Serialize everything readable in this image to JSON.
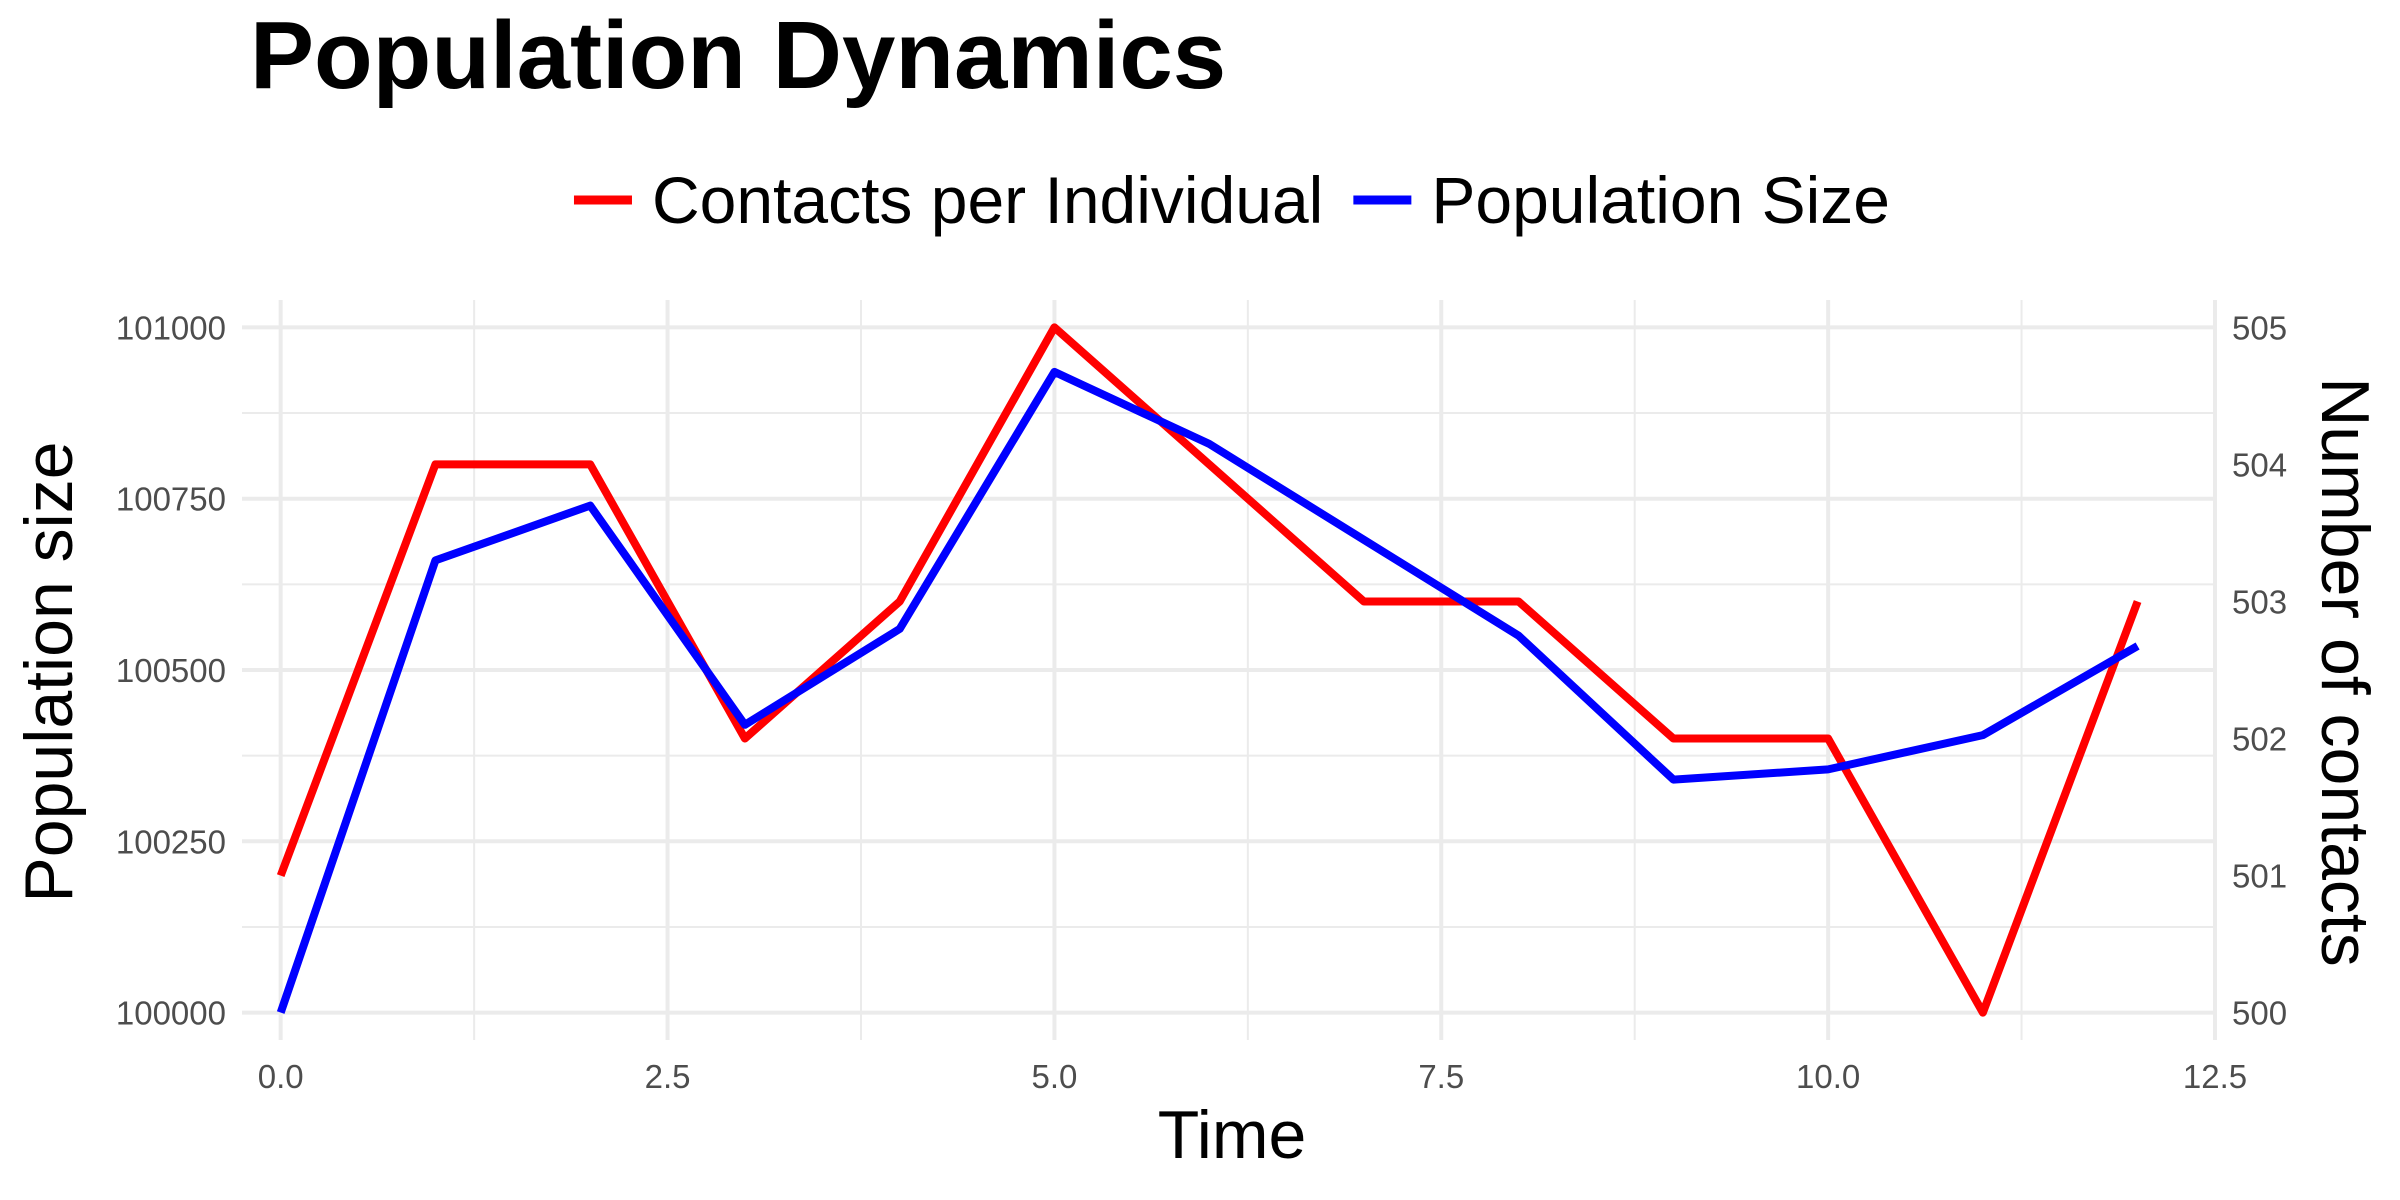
{
  "chart_data": {
    "type": "line",
    "title": "Population Dynamics",
    "xlabel": "Time",
    "ylabel": "Population size",
    "y2label": "Number of contacts",
    "xlim": [
      -0.25,
      12.5
    ],
    "ylim": [
      99960,
      101040
    ],
    "y2lim": [
      499.8,
      505.2
    ],
    "x_ticks": [
      0.0,
      2.5,
      5.0,
      7.5,
      10.0,
      12.5
    ],
    "x_tick_labels": [
      "0.0",
      "2.5",
      "5.0",
      "7.5",
      "10.0",
      "12.5"
    ],
    "y_ticks": [
      100000,
      100250,
      100500,
      100750,
      101000
    ],
    "y_tick_labels": [
      "100000",
      "100250",
      "100500",
      "100750",
      "101000"
    ],
    "y2_ticks": [
      500,
      501,
      502,
      503,
      504,
      505
    ],
    "y2_tick_labels": [
      "500",
      "501",
      "502",
      "503",
      "504",
      "505"
    ],
    "grid": true,
    "legend_position": "top",
    "x": [
      0,
      1,
      2,
      3,
      4,
      5,
      6,
      7,
      8,
      9,
      10,
      11,
      12
    ],
    "series": [
      {
        "name": "Contacts per Individual",
        "color": "#ff0000",
        "axis": "right",
        "values": [
          501,
          504,
          504,
          502,
          503,
          505,
          504,
          503,
          503,
          502,
          502,
          500,
          503
        ]
      },
      {
        "name": "Population Size",
        "color": "#0000ff",
        "axis": "left",
        "values": [
          100000,
          100660,
          100740,
          100420,
          100560,
          100935,
          100830,
          100690,
          100550,
          100340,
          100355,
          100405,
          100535
        ]
      }
    ]
  }
}
